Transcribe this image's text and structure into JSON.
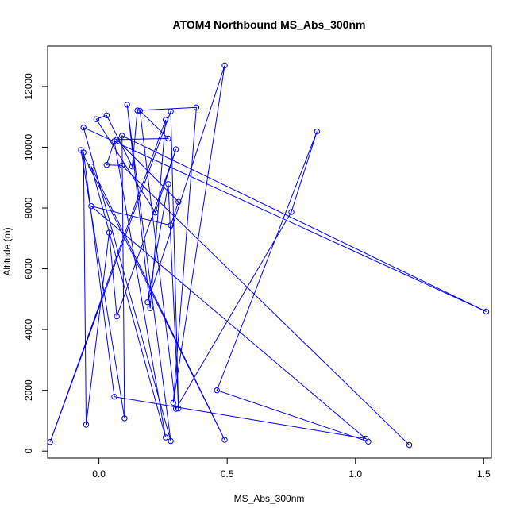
{
  "chart_data": {
    "type": "line",
    "title": "ATOM4 Northbound MS_Abs_300nm",
    "xlabel": "MS_Abs_300nm",
    "ylabel": "Altitude (m)",
    "xlim": [
      -0.2,
      1.53
    ],
    "ylim": [
      -230,
      13330
    ],
    "xticks": [
      0.0,
      0.5,
      1.0,
      1.5
    ],
    "xtick_labels": [
      "0.0",
      "0.5",
      "1.0",
      "1.5"
    ],
    "yticks": [
      0,
      2000,
      4000,
      6000,
      8000,
      10000,
      12000
    ],
    "ytick_labels": [
      "0",
      "2000",
      "4000",
      "6000",
      "8000",
      "10000",
      "12000"
    ],
    "color": "#0000ff",
    "grid": false,
    "legend": "none",
    "series": [
      {
        "points": [
          {
            "x": 1.21,
            "y": 200
          },
          {
            "x": 0.09,
            "y": 9400
          },
          {
            "x": 0.03,
            "y": 9420
          },
          {
            "x": 0.06,
            "y": 10200
          },
          {
            "x": 0.26,
            "y": 450
          },
          {
            "x": -0.03,
            "y": 9370
          },
          {
            "x": 0.49,
            "y": 370
          },
          {
            "x": -0.07,
            "y": 9910
          },
          {
            "x": 0.1,
            "y": 1080
          },
          {
            "x": 0.09,
            "y": 10380
          },
          {
            "x": 1.51,
            "y": 4590
          },
          {
            "x": -0.06,
            "y": 10650
          },
          {
            "x": 0.28,
            "y": 330
          },
          {
            "x": 0.11,
            "y": 11400
          },
          {
            "x": 0.2,
            "y": 4700
          },
          {
            "x": 0.26,
            "y": 10900
          },
          {
            "x": -0.19,
            "y": 300
          },
          {
            "x": 0.28,
            "y": 11180
          },
          {
            "x": 0.31,
            "y": 1400
          },
          {
            "x": 0.27,
            "y": 8790
          },
          {
            "x": 0.19,
            "y": 4900
          },
          {
            "x": 0.49,
            "y": 12690
          },
          {
            "x": 0.29,
            "y": 1590
          },
          {
            "x": 0.38,
            "y": 11310
          },
          {
            "x": 0.15,
            "y": 11210
          },
          {
            "x": 0.13,
            "y": 9370
          },
          {
            "x": 0.03,
            "y": 11050
          },
          {
            "x": -0.01,
            "y": 10920
          },
          {
            "x": 0.22,
            "y": 7850
          },
          {
            "x": 0.3,
            "y": 9930
          },
          {
            "x": 0.07,
            "y": 4430
          },
          {
            "x": 0.04,
            "y": 7190
          },
          {
            "x": -0.05,
            "y": 870
          },
          {
            "x": -0.06,
            "y": 9830
          },
          {
            "x": 0.06,
            "y": 1790
          },
          {
            "x": 1.04,
            "y": 410
          },
          {
            "x": -0.03,
            "y": 8060
          },
          {
            "x": 0.28,
            "y": 7430
          },
          {
            "x": 0.31,
            "y": 8200
          },
          {
            "x": 0.07,
            "y": 10250
          },
          {
            "x": 0.27,
            "y": 10290
          },
          {
            "x": 0.16,
            "y": 11200
          },
          {
            "x": 0.3,
            "y": 1390
          },
          {
            "x": 0.75,
            "y": 7870
          },
          {
            "x": 0.85,
            "y": 10520
          },
          {
            "x": 0.46,
            "y": 2000
          },
          {
            "x": 1.05,
            "y": 310
          }
        ]
      }
    ]
  }
}
